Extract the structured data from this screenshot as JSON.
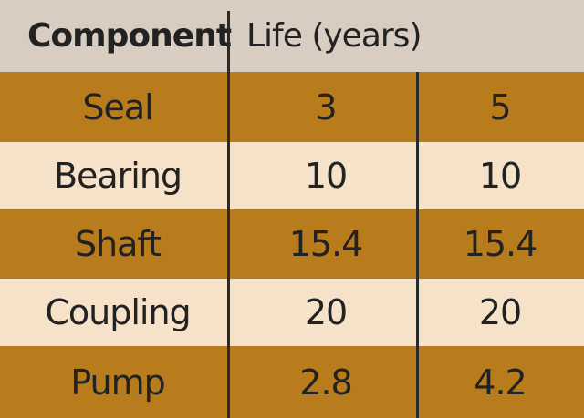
{
  "header": {
    "component": "Component",
    "life": "Life (years)"
  },
  "rows": [
    {
      "component": "Seal",
      "a": "3",
      "b": "5"
    },
    {
      "component": "Bearing",
      "a": "10",
      "b": "10"
    },
    {
      "component": "Shaft",
      "a": "15.4",
      "b": "15.4"
    },
    {
      "component": "Coupling",
      "a": "20",
      "b": "20"
    },
    {
      "component": "Pump",
      "a": "2.8",
      "b": "4.2"
    }
  ],
  "colors": {
    "header_bg": "#d9ccc0",
    "dark_row": "#b97c1c",
    "light_row": "#f5e2c9",
    "rule": "#2a2a2a"
  }
}
